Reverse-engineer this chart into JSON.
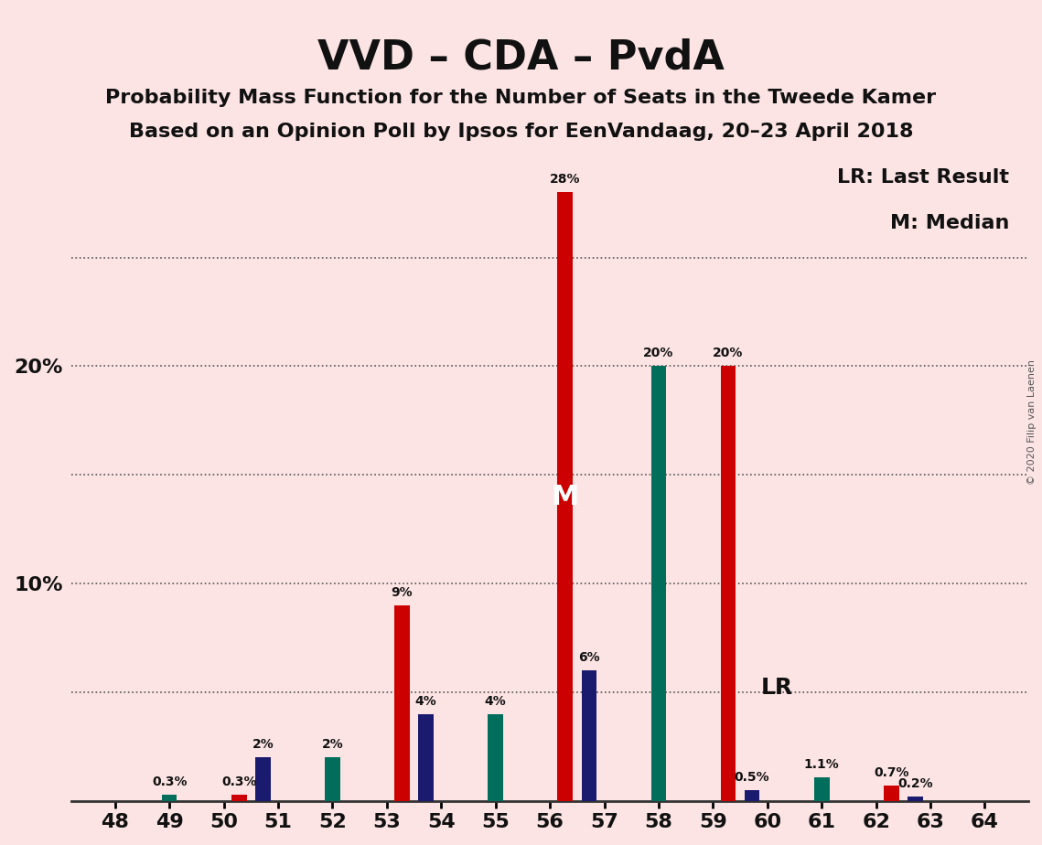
{
  "title": "VVD – CDA – PvdA",
  "subtitle1": "Probability Mass Function for the Number of Seats in the Tweede Kamer",
  "subtitle2": "Based on an Opinion Poll by Ipsos for EenVandaag, 20–23 April 2018",
  "copyright": "© 2020 Filip van Laenen",
  "legend_lr": "LR: Last Result",
  "legend_m": "M: Median",
  "seats": [
    48,
    49,
    50,
    51,
    52,
    53,
    54,
    55,
    56,
    57,
    58,
    59,
    60,
    61,
    62,
    63,
    64
  ],
  "vvd_values": [
    0.0,
    0.0,
    0.0,
    2.0,
    0.0,
    0.0,
    4.0,
    0.0,
    0.0,
    6.0,
    0.0,
    0.0,
    0.5,
    0.0,
    0.0,
    0.2,
    0.0
  ],
  "cda_values": [
    0.0,
    0.3,
    0.0,
    0.0,
    2.0,
    0.0,
    0.0,
    4.0,
    0.0,
    0.0,
    20.0,
    0.0,
    0.0,
    1.1,
    0.0,
    0.0,
    0.0
  ],
  "pvda_values": [
    0.0,
    0.0,
    0.3,
    0.0,
    0.0,
    9.0,
    0.0,
    0.0,
    28.0,
    0.0,
    0.0,
    20.0,
    0.0,
    0.0,
    0.7,
    0.0,
    0.0
  ],
  "vvd_color": "#1a1a6e",
  "cda_color": "#006e5a",
  "pvda_color": "#cc0000",
  "background_color": "#fce4e4",
  "median_seat": 56,
  "lr_seat": 59,
  "ylim": [
    0,
    30
  ],
  "yticks": [
    0,
    5,
    10,
    15,
    20,
    25,
    30
  ],
  "grid_ticks": [
    5,
    10,
    15,
    20,
    25
  ],
  "bar_width": 0.28
}
